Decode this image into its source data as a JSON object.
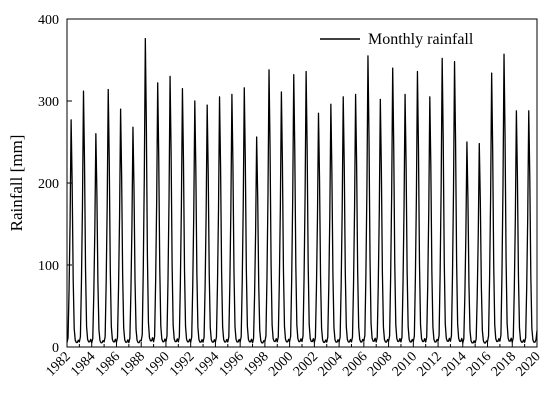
{
  "chart_data": {
    "type": "line",
    "title": "",
    "xlabel": "",
    "ylabel": "Rainfall [mm]",
    "xlim": [
      1982,
      2020
    ],
    "ylim": [
      0,
      400
    ],
    "xticks": [
      "1982",
      "1984",
      "1986",
      "1988",
      "1990",
      "1992",
      "1994",
      "1996",
      "1998",
      "2000",
      "2002",
      "2004",
      "2006",
      "2008",
      "2010",
      "2012",
      "2014",
      "2016",
      "2018",
      "2020"
    ],
    "yticks": [
      0,
      100,
      200,
      300,
      400
    ],
    "grid": false,
    "legend_position": "top-right",
    "line_color": "#000000",
    "series": [
      {
        "name": "Monthly rainfall",
        "annual_peaks": [
          {
            "year": 1982,
            "peak": 277
          },
          {
            "year": 1983,
            "peak": 312
          },
          {
            "year": 1984,
            "peak": 260
          },
          {
            "year": 1985,
            "peak": 314
          },
          {
            "year": 1986,
            "peak": 290
          },
          {
            "year": 1987,
            "peak": 268
          },
          {
            "year": 1988,
            "peak": 376
          },
          {
            "year": 1989,
            "peak": 322
          },
          {
            "year": 1990,
            "peak": 330
          },
          {
            "year": 1991,
            "peak": 315
          },
          {
            "year": 1992,
            "peak": 300
          },
          {
            "year": 1993,
            "peak": 295
          },
          {
            "year": 1994,
            "peak": 305
          },
          {
            "year": 1995,
            "peak": 308
          },
          {
            "year": 1996,
            "peak": 316
          },
          {
            "year": 1997,
            "peak": 256
          },
          {
            "year": 1998,
            "peak": 338
          },
          {
            "year": 1999,
            "peak": 311
          },
          {
            "year": 2000,
            "peak": 332
          },
          {
            "year": 2001,
            "peak": 336
          },
          {
            "year": 2002,
            "peak": 285
          },
          {
            "year": 2003,
            "peak": 296
          },
          {
            "year": 2004,
            "peak": 305
          },
          {
            "year": 2005,
            "peak": 308
          },
          {
            "year": 2006,
            "peak": 355
          },
          {
            "year": 2007,
            "peak": 302
          },
          {
            "year": 2008,
            "peak": 340
          },
          {
            "year": 2009,
            "peak": 308
          },
          {
            "year": 2010,
            "peak": 336
          },
          {
            "year": 2011,
            "peak": 305
          },
          {
            "year": 2012,
            "peak": 352
          },
          {
            "year": 2013,
            "peak": 348
          },
          {
            "year": 2014,
            "peak": 250
          },
          {
            "year": 2015,
            "peak": 248
          },
          {
            "year": 2016,
            "peak": 334
          },
          {
            "year": 2017,
            "peak": 357
          },
          {
            "year": 2018,
            "peak": 288
          },
          {
            "year": 2019,
            "peak": 288
          }
        ]
      }
    ]
  }
}
